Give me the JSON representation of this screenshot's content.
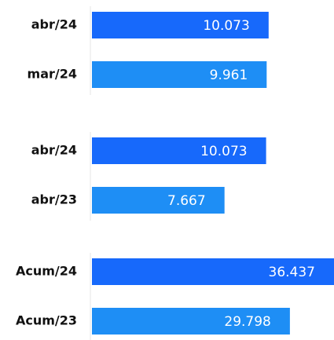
{
  "chart_data": [
    {
      "type": "bar",
      "orientation": "horizontal",
      "categories": [
        "abr/24",
        "mar/24"
      ],
      "values": [
        10073,
        9961
      ],
      "value_labels": [
        "10.073",
        "9.961"
      ],
      "colors": [
        "#1769fb",
        "#1e8ef5"
      ],
      "xlim": [
        0,
        13800
      ]
    },
    {
      "type": "bar",
      "orientation": "horizontal",
      "categories": [
        "abr/24",
        "abr/23"
      ],
      "values": [
        10073,
        7667
      ],
      "value_labels": [
        "10.073",
        "7.667"
      ],
      "colors": [
        "#1769fb",
        "#1e8ef5"
      ],
      "xlim": [
        0,
        14000
      ]
    },
    {
      "type": "bar",
      "orientation": "horizontal",
      "categories": [
        "Acum/24",
        "Acum/23"
      ],
      "values": [
        36437,
        29798
      ],
      "value_labels": [
        "36.437",
        "29.798"
      ],
      "colors": [
        "#1769fb",
        "#1e8ef5"
      ],
      "xlim": [
        0,
        36437
      ]
    }
  ]
}
